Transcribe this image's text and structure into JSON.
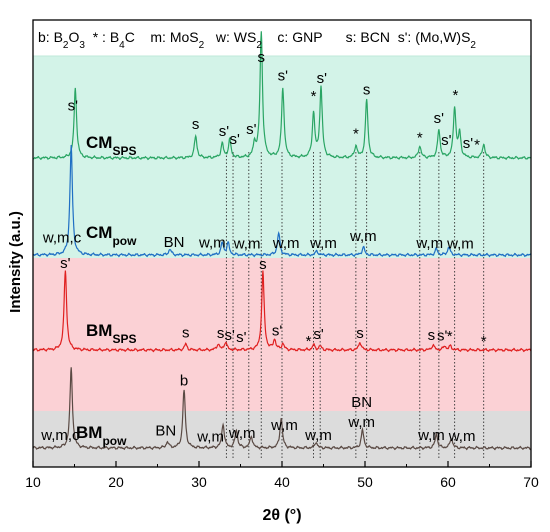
{
  "chart_data": {
    "type": "line",
    "title": "",
    "xlabel": "2θ (°)",
    "ylabel": "Intensity (a.u.)",
    "xlim": [
      10,
      70
    ],
    "xticks": [
      10,
      20,
      30,
      40,
      50,
      60,
      70
    ],
    "legend_text": {
      "parts": [
        {
          "t": "b: B",
          "sub": false
        },
        {
          "t": "2",
          "sub": true
        },
        {
          "t": "O",
          "sub": false
        },
        {
          "t": "3",
          "sub": true
        },
        {
          "t": "  * : B",
          "sub": false
        },
        {
          "t": "4",
          "sub": true
        },
        {
          "t": "C    m: MoS",
          "sub": false
        },
        {
          "t": "2",
          "sub": true
        },
        {
          "t": "   w: WS",
          "sub": false
        },
        {
          "t": "2",
          "sub": true
        },
        {
          "t": "    c: GNP      s: BCN  s': (Mo,W)S",
          "sub": false
        },
        {
          "t": "2",
          "sub": true
        }
      ]
    },
    "colors": {
      "CM_SPS": "#2aa564",
      "CM_pow": "#1f6fc4",
      "BM_SPS": "#e02020",
      "BM_pow": "#5a4a44",
      "band_green": "#d3f3e8",
      "band_pink": "#fbd1d5",
      "band_gray": "#dcdcdc"
    },
    "reference_lines_2theta": [
      33.3,
      34.1,
      36.0,
      37.5,
      40.0,
      43.8,
      44.6,
      48.9,
      50.2,
      56.6,
      58.9,
      60.8,
      64.3
    ],
    "series": [
      {
        "id": "CM_SPS",
        "name": "CM",
        "name_sub": "SPS",
        "peaks": [
          [
            15.1,
            70
          ],
          [
            29.6,
            22
          ],
          [
            32.8,
            14
          ],
          [
            33.7,
            18
          ],
          [
            36.7,
            14
          ],
          [
            37.5,
            125
          ],
          [
            40.1,
            70
          ],
          [
            43.8,
            44
          ],
          [
            44.7,
            70
          ],
          [
            48.9,
            12
          ],
          [
            50.2,
            58
          ],
          [
            56.6,
            12
          ],
          [
            58.9,
            28
          ],
          [
            60.8,
            50
          ],
          [
            61.4,
            24
          ],
          [
            64.3,
            14
          ]
        ],
        "peak_labels": [
          {
            "x": 14.8,
            "text": "s'",
            "dy": 8
          },
          {
            "x": 29.6,
            "text": "s",
            "dy": 8
          },
          {
            "x": 33.0,
            "text": "s'",
            "dy": 8
          },
          {
            "x": 34.3,
            "text": "s'",
            "dy": 8
          },
          {
            "x": 36.3,
            "text": "s'",
            "dy": 8
          },
          {
            "x": 37.5,
            "text": "s",
            "dy": 4
          },
          {
            "x": 40.1,
            "text": "s'",
            "dy": 6
          },
          {
            "x": 43.8,
            "text": "*",
            "dy": 4
          },
          {
            "x": 44.8,
            "text": "s'",
            "dy": 6
          },
          {
            "x": 48.9,
            "text": "*",
            "dy": 4
          },
          {
            "x": 50.2,
            "text": "s",
            "dy": 6
          },
          {
            "x": 56.6,
            "text": "*",
            "dy": 4
          },
          {
            "x": 58.9,
            "text": "s'",
            "dy": 6
          },
          {
            "x": 59.8,
            "text": "s'",
            "dy": 4
          },
          {
            "x": 60.9,
            "text": "*",
            "dy": 4
          },
          {
            "x": 62.4,
            "text": "s'",
            "dy": 6
          },
          {
            "x": 63.5,
            "text": "*",
            "dy": 6
          }
        ]
      },
      {
        "id": "CM_pow",
        "name": "CM",
        "name_sub": "pow",
        "peaks": [
          [
            14.6,
            110
          ],
          [
            26.5,
            6
          ],
          [
            32.8,
            12
          ],
          [
            33.5,
            12
          ],
          [
            39.6,
            22
          ],
          [
            44.2,
            4
          ],
          [
            49.8,
            8
          ],
          [
            58.6,
            6
          ],
          [
            60.1,
            8
          ]
        ],
        "peak_labels": [
          {
            "x": 13.5,
            "text": "w,m,c",
            "dy": 4
          },
          {
            "x": 27.0,
            "text": "BN",
            "dy": 8
          },
          {
            "x": 31.6,
            "text": "w,m",
            "dy": 8
          },
          {
            "x": 35.8,
            "text": "w,m",
            "dy": 8
          },
          {
            "x": 40.5,
            "text": "w,m",
            "dy": 6
          },
          {
            "x": 45.0,
            "text": "w,m",
            "dy": 8
          },
          {
            "x": 49.8,
            "text": "w,m",
            "dy": 8
          },
          {
            "x": 57.8,
            "text": "w,m",
            "dy": 8
          },
          {
            "x": 61.5,
            "text": "w,m",
            "dy": 8
          }
        ]
      },
      {
        "id": "BM_SPS",
        "name": "BM",
        "name_sub": "SPS",
        "peaks": [
          [
            13.9,
            80
          ],
          [
            28.4,
            6
          ],
          [
            32.3,
            6
          ],
          [
            33.2,
            8
          ],
          [
            37.7,
            78
          ],
          [
            39.1,
            10
          ],
          [
            40.1,
            6
          ],
          [
            43.8,
            5
          ],
          [
            44.6,
            4
          ],
          [
            49.4,
            8
          ],
          [
            58.2,
            5
          ],
          [
            59.6,
            4
          ],
          [
            60.3,
            4
          ]
        ],
        "peak_labels": [
          {
            "x": 13.9,
            "text": "s'",
            "dy": 4
          },
          {
            "x": 28.4,
            "text": "s",
            "dy": 8
          },
          {
            "x": 32.6,
            "text": "s",
            "dy": 8
          },
          {
            "x": 33.7,
            "text": "s'",
            "dy": 8
          },
          {
            "x": 35.1,
            "text": "s'",
            "dy": 8
          },
          {
            "x": 37.7,
            "text": "s",
            "dy": 4
          },
          {
            "x": 39.4,
            "text": "s'",
            "dy": 6
          },
          {
            "x": 43.2,
            "text": "*",
            "dy": 4
          },
          {
            "x": 44.4,
            "text": "s'",
            "dy": 8
          },
          {
            "x": 49.4,
            "text": "s",
            "dy": 6
          },
          {
            "x": 58.0,
            "text": "s",
            "dy": 8
          },
          {
            "x": 59.3,
            "text": "s'",
            "dy": 8
          },
          {
            "x": 60.2,
            "text": "*",
            "dy": 6
          },
          {
            "x": 64.3,
            "text": "*",
            "dy": 6
          }
        ]
      },
      {
        "id": "BM_pow",
        "name": "BM",
        "name_sub": "pow",
        "peaks": [
          [
            14.6,
            80
          ],
          [
            26.2,
            6
          ],
          [
            28.2,
            58
          ],
          [
            32.9,
            24
          ],
          [
            34.5,
            18
          ],
          [
            36.3,
            12
          ],
          [
            39.9,
            30
          ],
          [
            44.1,
            6
          ],
          [
            49.7,
            18
          ],
          [
            58.6,
            14
          ],
          [
            60.4,
            10
          ]
        ],
        "peak_labels": [
          {
            "x": 13.3,
            "text": "w,m,c",
            "dy": 4
          },
          {
            "x": 28.2,
            "text": "b",
            "dy": 6
          },
          {
            "x": 31.4,
            "text": "w,m",
            "dy": 6
          },
          {
            "x": 35.2,
            "text": "w,m",
            "dy": 6
          },
          {
            "x": 40.3,
            "text": "w,m",
            "dy": 6
          },
          {
            "x": 44.4,
            "text": "w,m",
            "dy": 6
          },
          {
            "x": 49.6,
            "text": "w,m",
            "dy": 6
          },
          {
            "x": 49.6,
            "text": "BN",
            "dy": 26
          },
          {
            "x": 58.0,
            "text": "w,m",
            "dy": 6
          },
          {
            "x": 61.7,
            "text": "w,m",
            "dy": 8
          },
          {
            "x": 26.0,
            "text": "BN",
            "dy": 8
          }
        ]
      }
    ]
  }
}
